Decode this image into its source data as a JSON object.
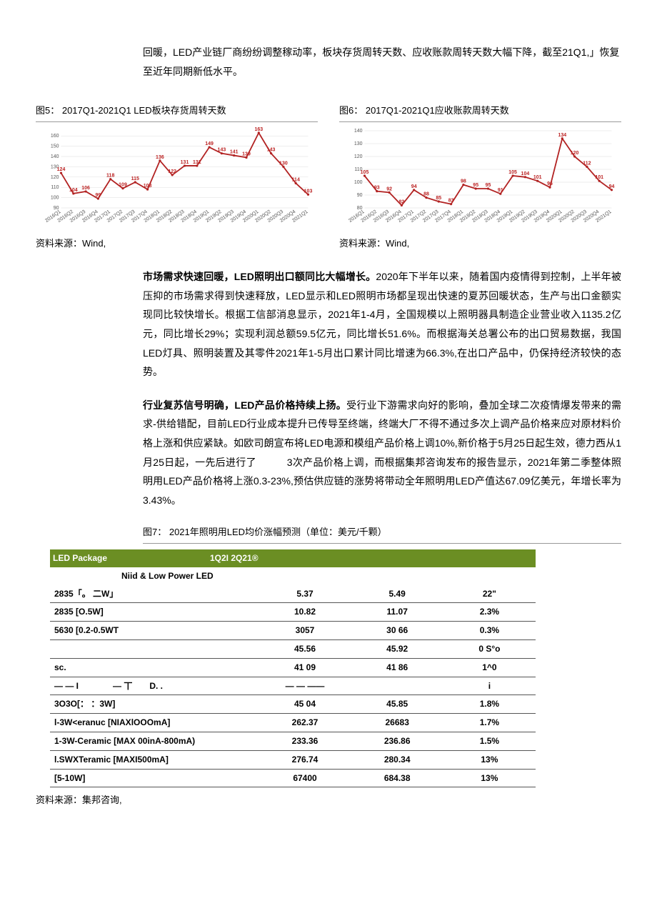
{
  "intro": "回暖，LED产业链厂商纷纷调整稼动率，板块存货周转天数、应收账款周转天数大幅下降，截至21Q1,」恢复至近年同期新低水平。",
  "chart5": {
    "title": "图5：  2017Q1-2021Q1 LED板块存货周转天数",
    "type": "line",
    "categories": [
      "2016Q1",
      "2016Q2",
      "2016Q3",
      "2016Q4",
      "2017Q1",
      "2017Q2",
      "2017Q3",
      "2017Q4",
      "2018Q1",
      "2018Q2",
      "2018Q3",
      "2018Q4",
      "2019Q1",
      "2019Q2",
      "2019Q3",
      "2019Q4",
      "2020Q1",
      "2020Q2",
      "2020Q3",
      "2020Q4",
      "2021Q1"
    ],
    "values": [
      124,
      104,
      106,
      99,
      118,
      109,
      115,
      108,
      136,
      122,
      131,
      131,
      149,
      143,
      141,
      139,
      163,
      143,
      130,
      114,
      103
    ],
    "ylim": [
      90,
      165
    ],
    "ytick_step": 10,
    "line_color": "#b22222",
    "background_color": "#ffffff",
    "grid_color": "#dddddd",
    "label_fontsize": 7
  },
  "chart6": {
    "title": "图6：  2017Q1-2021Q1应收账款周转天数",
    "type": "line",
    "categories": [
      "2016Q1",
      "2016Q2",
      "2016Q3",
      "2016Q4",
      "2017Q1",
      "2017Q2",
      "2017Q3",
      "2017Q4",
      "2018Q1",
      "2018Q2",
      "2018Q3",
      "2018Q4",
      "2019Q1",
      "2019Q2",
      "2019Q3",
      "2019Q4",
      "2020Q1",
      "2020Q2",
      "2020Q3",
      "2020Q4",
      "2021Q1"
    ],
    "values": [
      105,
      93,
      92,
      82,
      94,
      88,
      85,
      83,
      98,
      95,
      95,
      91,
      105,
      104,
      101,
      96,
      134,
      120,
      112,
      101,
      94
    ],
    "ylim": [
      80,
      140
    ],
    "ytick_step": 10,
    "line_color": "#b22222",
    "background_color": "#ffffff",
    "grid_color": "#dddddd",
    "label_fontsize": 7
  },
  "source_left": "资料来源：Wind,",
  "source_right": "资料来源：Wind,",
  "para1_bold": "市场需求快速回暖，LED照明出口额同比大幅增长。",
  "para1_rest": "2020年下半年以来，随着国内疫情得到控制，上半年被压抑的市场需求得到快速释放，LED显示和LED照明市场都呈现出快速的夏苏回暖状态，生产与出口金额实现同比较快增长。根据工信部消息显示，2021年1-4月，全国规模以上照明器具制造企业营业收入1135.2亿元，同比增长29%；实现利润总额59.5亿元，同比增长51.6%。而根据海关总署公布的出口贸易数据，我国LED灯具、照明装置及其零件2021年1-5月出口累计同比增速为66.3%,在出口产品中，仍保持经济较快的态势。",
  "para2_bold": "行业复苏信号明确，LED产品价格持续上扬。",
  "para2_rest": "受行业下游需求向好的影响，叠加全球二次疫情爆发带来的需求-供给错配，目前LED行业成本提升已传导至终端，终端大厂不得不通过多次上调产品价格来应对原材料价格上涨和供应紧缺。如欧司朗宣布将LED电源和模组产品价格上调10%,新价格于5月25日起生效，德力西从1月25日起，一先后进行了　　　3次产品价格上调，而根据集邦咨询发布的报告显示，2021年第二季整体照明用LED产品价格将上涨0.3-23%,预估供应链的涨势将带动全年照明用LED产值达67.09亿美元，年增长率为3.43%。",
  "table_title": "图7：  2021年照明用LED均价涨幅预测（单位：美元/千颗）",
  "table_header_left": "LED Package",
  "table_header_right": "1Q2I 2Q21®",
  "table_subhead": "Niid & Low Power LED",
  "table_rows": [
    {
      "c1": "2835「。 二W」",
      "c2": "5.37",
      "c3": "5.49",
      "c4": "22\""
    },
    {
      "c1": "2835 [O.5W]",
      "c2": "10.82",
      "c3": "11.07",
      "c4": "2.3%"
    },
    {
      "c1": "5630 [0.2-0.5WT",
      "c2": "3057",
      "c3": "30 66",
      "c4": "0.3%"
    },
    {
      "c1": "",
      "c2": "45.56",
      "c3": "45.92",
      "c4": "0 S°o"
    },
    {
      "c1": "sc.",
      "c2": "41 09",
      "c3": "41 86",
      "c4": "1^0"
    },
    {
      "c1": "— —  I　　　　— 丅　　D. .",
      "c2": "— —   ——",
      "c3": "",
      "c4": "i"
    },
    {
      "c1": "3O3O[：  ：3W]",
      "c2": "45 04",
      "c3": "45.85",
      "c4": "1.8%"
    },
    {
      "c1": "l-3W<eranuc [NIAXlOOOmA]",
      "c2": "262.37",
      "c3": "26683",
      "c4": "1.7%"
    },
    {
      "c1": "1-3W-Ceramic [MAX  00inA-800mA)",
      "c2": "233.36",
      "c3": "236.86",
      "c4": "1.5%"
    },
    {
      "c1": "l.SWXTeramic [MAXI500mA]",
      "c2": "276.74",
      "c3": "280.34",
      "c4": "13%"
    },
    {
      "c1": "[5-10W]",
      "c2": "67400",
      "c3": "684.38",
      "c4": "13%"
    }
  ],
  "table_source": "资料来源：集邦咨询,"
}
